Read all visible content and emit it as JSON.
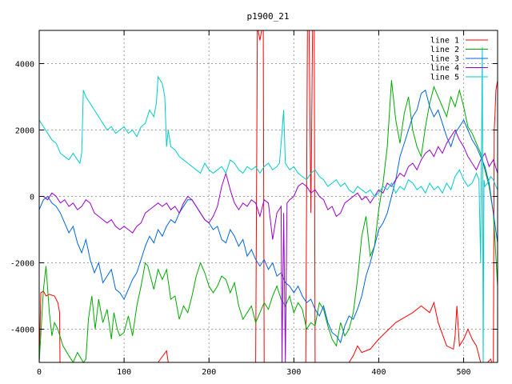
{
  "chart_data": {
    "type": "line",
    "title": "p1900_21",
    "xlabel": "",
    "ylabel": "",
    "xlim": [
      0,
      540
    ],
    "ylim": [
      -5000,
      5000
    ],
    "x_ticks": [
      0,
      100,
      200,
      300,
      400,
      500
    ],
    "y_ticks": [
      -4000,
      -2000,
      0,
      2000,
      4000
    ],
    "grid": true,
    "legend_position": "top-right",
    "series": [
      {
        "name": "line 1",
        "color": "#ff0000",
        "x": [
          0,
          2,
          5,
          8,
          12,
          18,
          22,
          24,
          24.5,
          40,
          60,
          85,
          105,
          120,
          140,
          150,
          152,
          255,
          257,
          258,
          260,
          262,
          264,
          265,
          314,
          316,
          318,
          320,
          322,
          324,
          325,
          355,
          365,
          370,
          375,
          380,
          390,
          400,
          420,
          440,
          450,
          460,
          465,
          470,
          480,
          488,
          490,
          492,
          495,
          500,
          505,
          510,
          515,
          520,
          528,
          532,
          533,
          535,
          536,
          537,
          538,
          540
        ],
        "y": [
          -5000,
          -2900,
          -2850,
          -3000,
          -2950,
          -3000,
          -3200,
          -3500,
          -5000,
          -5000,
          -5000,
          -5000,
          -5000,
          -5000,
          -5000,
          -4650,
          -5000,
          -5000,
          5000,
          5000,
          4700,
          5000,
          5000,
          -5000,
          -5000,
          5000,
          5000,
          -500,
          5000,
          5000,
          -5000,
          -5000,
          -5000,
          -4800,
          -4500,
          -4700,
          -4600,
          -4300,
          -3800,
          -3500,
          -3300,
          -3500,
          -3200,
          -3800,
          -4500,
          -4600,
          -4200,
          -3300,
          -4500,
          -4300,
          -4000,
          -4300,
          -4500,
          -5000,
          -5000,
          -4900,
          -5000,
          -5000,
          2000,
          2500,
          3200,
          3500
        ]
      },
      {
        "name": "line 2",
        "color": "#00aa00",
        "x": [
          0,
          5,
          8,
          12,
          15,
          18,
          22,
          28,
          35,
          40,
          45,
          52,
          55,
          58,
          62,
          66,
          70,
          75,
          80,
          85,
          88,
          92,
          95,
          100,
          105,
          110,
          115,
          120,
          125,
          128,
          135,
          140,
          145,
          150,
          155,
          160,
          165,
          170,
          175,
          180,
          185,
          190,
          195,
          200,
          205,
          210,
          215,
          220,
          225,
          230,
          235,
          240,
          245,
          250,
          255,
          260,
          265,
          270,
          275,
          280,
          285,
          290,
          295,
          300,
          305,
          310,
          315,
          320,
          325,
          330,
          335,
          340,
          345,
          350,
          355,
          360,
          365,
          370,
          375,
          380,
          385,
          390,
          395,
          400,
          405,
          410,
          415,
          420,
          425,
          430,
          435,
          440,
          445,
          450,
          455,
          460,
          465,
          470,
          475,
          480,
          485,
          490,
          495,
          500,
          505,
          510,
          515,
          520,
          525,
          530,
          535,
          540
        ],
        "y": [
          -5000,
          -2800,
          -2100,
          -3500,
          -4200,
          -3800,
          -4000,
          -4500,
          -4800,
          -5000,
          -4700,
          -5000,
          -4900,
          -3700,
          -3000,
          -4000,
          -3100,
          -3800,
          -3400,
          -4300,
          -3500,
          -4000,
          -4200,
          -4100,
          -3600,
          -4200,
          -3300,
          -2700,
          -2000,
          -2100,
          -2800,
          -2200,
          -2500,
          -2200,
          -3100,
          -3000,
          -3700,
          -3300,
          -3500,
          -3000,
          -2400,
          -2000,
          -2300,
          -2700,
          -2900,
          -2700,
          -2400,
          -2500,
          -2900,
          -2600,
          -3300,
          -3700,
          -3500,
          -3300,
          -3800,
          -3500,
          -3200,
          -3400,
          -3000,
          -2700,
          -3100,
          -3300,
          -3000,
          -3500,
          -3200,
          -3400,
          -4000,
          -3800,
          -3900,
          -3200,
          -3400,
          -3900,
          -4300,
          -4500,
          -3800,
          -4200,
          -4000,
          -3500,
          -2500,
          -1200,
          -600,
          -1800,
          -1500,
          -400,
          400,
          1500,
          3500,
          2300,
          1600,
          2500,
          3000,
          2000,
          1500,
          1200,
          2100,
          2800,
          3300,
          3000,
          2700,
          2400,
          3000,
          2700,
          3200,
          2700,
          2100,
          1900,
          1600,
          1300,
          800,
          300,
          -500,
          -2700
        ]
      },
      {
        "name": "line 3",
        "color": "#0066dd",
        "x": [
          0,
          5,
          10,
          15,
          20,
          25,
          30,
          35,
          40,
          45,
          50,
          55,
          60,
          65,
          70,
          75,
          80,
          85,
          90,
          95,
          100,
          105,
          110,
          115,
          120,
          125,
          130,
          135,
          140,
          145,
          150,
          155,
          160,
          165,
          170,
          175,
          180,
          185,
          190,
          195,
          200,
          205,
          210,
          215,
          220,
          225,
          230,
          235,
          240,
          245,
          250,
          255,
          260,
          265,
          270,
          275,
          280,
          285,
          290,
          295,
          300,
          305,
          310,
          315,
          320,
          325,
          330,
          335,
          340,
          345,
          350,
          355,
          360,
          365,
          370,
          375,
          380,
          385,
          390,
          395,
          400,
          405,
          410,
          415,
          420,
          425,
          430,
          435,
          440,
          445,
          450,
          455,
          460,
          465,
          470,
          475,
          480,
          485,
          490,
          495,
          500,
          505,
          510,
          515,
          520,
          525,
          530,
          535,
          540
        ],
        "y": [
          -400,
          -100,
          0,
          -200,
          -300,
          -500,
          -800,
          -1100,
          -900,
          -1400,
          -1700,
          -1300,
          -1900,
          -2300,
          -2000,
          -2600,
          -2400,
          -2200,
          -2800,
          -2900,
          -3100,
          -2800,
          -2500,
          -2300,
          -1900,
          -1500,
          -1200,
          -1400,
          -1000,
          -1200,
          -900,
          -700,
          -800,
          -500,
          -300,
          -100,
          -100,
          -300,
          -500,
          -700,
          -800,
          -1000,
          -900,
          -1300,
          -1400,
          -1000,
          -1200,
          -1500,
          -1300,
          -1800,
          -1600,
          -1900,
          -2100,
          -1900,
          -2200,
          -2000,
          -2400,
          -2300,
          -2600,
          -2700,
          -2900,
          -2700,
          -3000,
          -3200,
          -3100,
          -3400,
          -3600,
          -3300,
          -3800,
          -4100,
          -4200,
          -4400,
          -3900,
          -3600,
          -3700,
          -3400,
          -3000,
          -2400,
          -2000,
          -1500,
          -1000,
          -800,
          -500,
          0,
          500,
          1200,
          1600,
          2000,
          2400,
          2600,
          3100,
          3200,
          2700,
          2400,
          2600,
          2200,
          1800,
          1500,
          1900,
          2100,
          2300,
          2000,
          1700,
          1500,
          1200,
          900,
          400,
          -500,
          -1400
        ]
      },
      {
        "name": "line 4",
        "color": "#9900cc",
        "x": [
          0,
          5,
          10,
          15,
          20,
          25,
          30,
          35,
          40,
          45,
          50,
          55,
          60,
          65,
          70,
          75,
          80,
          85,
          90,
          95,
          100,
          105,
          110,
          115,
          120,
          125,
          130,
          135,
          140,
          145,
          150,
          155,
          160,
          165,
          170,
          175,
          180,
          185,
          190,
          195,
          200,
          205,
          210,
          215,
          220,
          225,
          230,
          235,
          240,
          245,
          250,
          255,
          260,
          265,
          270,
          275,
          280,
          285,
          286,
          288,
          290,
          292,
          295,
          300,
          305,
          310,
          315,
          320,
          325,
          330,
          335,
          340,
          345,
          350,
          355,
          360,
          365,
          370,
          375,
          380,
          385,
          390,
          395,
          400,
          405,
          410,
          415,
          420,
          425,
          430,
          435,
          440,
          445,
          450,
          455,
          460,
          465,
          470,
          475,
          480,
          485,
          490,
          495,
          500,
          505,
          510,
          515,
          520,
          525,
          530,
          535,
          540
        ],
        "y": [
          0,
          0,
          -100,
          100,
          0,
          -200,
          -100,
          -300,
          -200,
          -400,
          -300,
          -100,
          -200,
          -500,
          -600,
          -700,
          -800,
          -700,
          -900,
          -1000,
          -900,
          -1000,
          -1100,
          -900,
          -800,
          -500,
          -400,
          -300,
          -200,
          -300,
          -200,
          -400,
          -300,
          -500,
          -200,
          0,
          -100,
          -300,
          -500,
          -700,
          -800,
          -600,
          -300,
          300,
          700,
          200,
          -200,
          -400,
          -200,
          -300,
          -100,
          -200,
          -600,
          -100,
          -200,
          -1300,
          -500,
          -300,
          -5000,
          -500,
          -5000,
          -200,
          -100,
          0,
          300,
          400,
          300,
          100,
          200,
          0,
          -100,
          -400,
          -300,
          -600,
          -500,
          -200,
          -100,
          0,
          100,
          -100,
          0,
          -200,
          0,
          200,
          100,
          400,
          300,
          500,
          700,
          600,
          900,
          1000,
          800,
          1100,
          1300,
          1400,
          1200,
          1500,
          1300,
          1600,
          1800,
          2000,
          1700,
          1500,
          1200,
          1000,
          800,
          1100,
          1300,
          900,
          1100,
          700
        ]
      },
      {
        "name": "line 5",
        "color": "#00cccc",
        "x": [
          0,
          5,
          10,
          15,
          20,
          25,
          30,
          35,
          40,
          45,
          48,
          50,
          52,
          55,
          60,
          65,
          70,
          75,
          80,
          85,
          90,
          95,
          100,
          105,
          110,
          115,
          120,
          125,
          130,
          135,
          138,
          140,
          145,
          148,
          150,
          152,
          155,
          160,
          165,
          170,
          175,
          180,
          185,
          190,
          195,
          200,
          205,
          210,
          215,
          220,
          225,
          230,
          235,
          240,
          245,
          250,
          255,
          260,
          265,
          270,
          275,
          280,
          283,
          285,
          288,
          290,
          295,
          300,
          305,
          310,
          315,
          320,
          325,
          330,
          335,
          340,
          345,
          350,
          355,
          360,
          365,
          370,
          375,
          380,
          385,
          390,
          395,
          400,
          405,
          410,
          415,
          420,
          425,
          430,
          435,
          440,
          445,
          450,
          455,
          460,
          465,
          470,
          475,
          480,
          485,
          490,
          495,
          500,
          505,
          510,
          515,
          518,
          520,
          522,
          523,
          524,
          525,
          528,
          532,
          535,
          538,
          540
        ],
        "y": [
          2300,
          2100,
          1900,
          1700,
          1600,
          1300,
          1200,
          1100,
          1300,
          1100,
          1000,
          1300,
          3200,
          3000,
          2800,
          2600,
          2400,
          2200,
          2000,
          2100,
          1900,
          2000,
          2100,
          1900,
          2000,
          1800,
          2100,
          2200,
          2600,
          2400,
          2800,
          3600,
          3400,
          3000,
          1500,
          2000,
          1500,
          1400,
          1200,
          1100,
          1000,
          900,
          800,
          700,
          1000,
          800,
          700,
          800,
          900,
          700,
          1100,
          1000,
          800,
          700,
          900,
          800,
          900,
          700,
          900,
          1000,
          800,
          900,
          1000,
          1600,
          2600,
          1000,
          800,
          900,
          700,
          600,
          500,
          700,
          800,
          600,
          500,
          300,
          400,
          500,
          300,
          400,
          200,
          100,
          300,
          200,
          100,
          200,
          0,
          100,
          300,
          200,
          400,
          100,
          300,
          200,
          500,
          400,
          200,
          300,
          100,
          400,
          200,
          300,
          100,
          400,
          200,
          600,
          800,
          500,
          300,
          400,
          700,
          500,
          -2000,
          4500,
          -5000,
          500,
          300,
          400,
          600,
          500,
          300,
          200
        ]
      }
    ]
  }
}
